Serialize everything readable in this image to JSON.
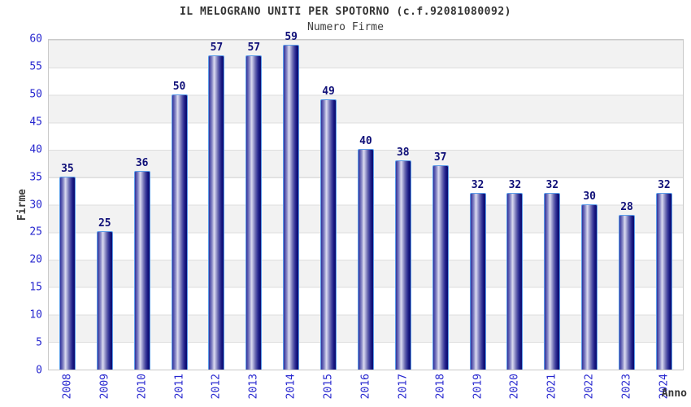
{
  "header": {
    "title": "IL MELOGRANO UNITI PER SPOTORNO (c.f.92081080092)",
    "subtitle": "Numero Firme"
  },
  "chart_data": {
    "type": "bar",
    "title": "IL MELOGRANO UNITI PER SPOTORNO (c.f.92081080092)",
    "subtitle": "Numero Firme",
    "categories": [
      "2008",
      "2009",
      "2010",
      "2011",
      "2012",
      "2013",
      "2014",
      "2015",
      "2016",
      "2017",
      "2018",
      "2019",
      "2020",
      "2021",
      "2022",
      "2023",
      "2024"
    ],
    "values": [
      35,
      25,
      36,
      50,
      57,
      57,
      59,
      49,
      40,
      38,
      37,
      32,
      32,
      32,
      30,
      28,
      32
    ],
    "xlabel": "Anno",
    "ylabel": "Firme",
    "ylim": [
      0,
      60
    ],
    "ytick_step": 5,
    "yticks": [
      60,
      55,
      50,
      45,
      40,
      35,
      30,
      25,
      20,
      15,
      10,
      5,
      0
    ],
    "grid": true,
    "legend": false,
    "band_fill": "alternating gray/white horizontal bands every 5 units, gray band at 55-60",
    "colors": {
      "bar_border": "#5b9ce8",
      "bar_dark": "#0b0b70",
      "bar_mid": "#30309a",
      "bar_highlight": "#dcdcf0",
      "tick_label": "#2727cf",
      "value_label": "#0f0f78",
      "band_gray": "#f2f2f2",
      "gridline": "#dedede",
      "title_color": "#333333"
    }
  }
}
